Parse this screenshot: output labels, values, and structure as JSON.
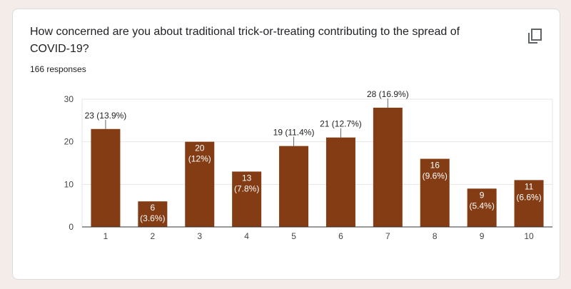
{
  "question": {
    "title": "How concerned are you about traditional trick-or-treating contributing to the spread of COVID-19?",
    "responses": "166 responses"
  },
  "icons": {
    "copy": "copy-icon"
  },
  "colors": {
    "bar": "#843c14",
    "grid": "#e6e6e6",
    "axis": "#333333",
    "page_bg": "#f3ece9"
  },
  "chart_data": {
    "type": "bar",
    "categories": [
      "1",
      "2",
      "3",
      "4",
      "5",
      "6",
      "7",
      "8",
      "9",
      "10"
    ],
    "values": [
      23,
      6,
      20,
      13,
      19,
      21,
      28,
      16,
      9,
      11
    ],
    "labels": [
      "23 (13.9%)",
      "6 (3.6%)",
      "20 (12%)",
      "13 (7.8%)",
      "19 (11.4%)",
      "21 (12.7%)",
      "28 (16.9%)",
      "16 (9.6%)",
      "9 (5.4%)",
      "11 (6.6%)"
    ],
    "label_placement": [
      "outside",
      "inside",
      "inside",
      "inside",
      "outside",
      "outside",
      "outside",
      "inside",
      "inside",
      "inside"
    ],
    "yticks": [
      0,
      10,
      20,
      30
    ],
    "ylim": [
      0,
      30
    ],
    "grid": true,
    "title": "",
    "xlabel": "",
    "ylabel": ""
  }
}
